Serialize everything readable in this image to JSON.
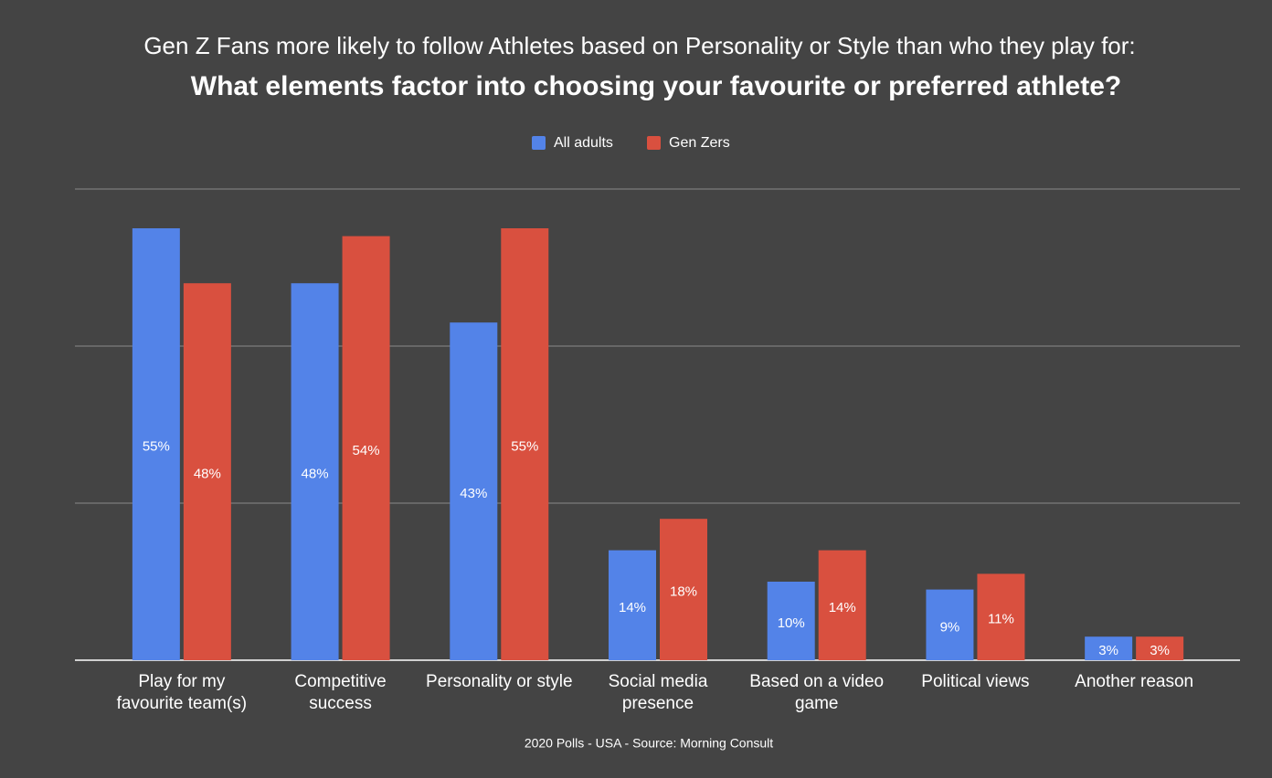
{
  "chart_data": {
    "type": "bar",
    "title": "Gen Z Fans more likely to follow Athletes based on Personality or Style than who they play for:",
    "subtitle": "What elements factor into choosing your favourite or preferred athlete?",
    "categories": [
      "Play for my favourite team(s)",
      "Competitive success",
      "Personality or style",
      "Social media presence",
      "Based on a video game",
      "Political views",
      "Another reason"
    ],
    "series": [
      {
        "name": "All adults",
        "color": "#5383e8",
        "values": [
          55,
          48,
          43,
          14,
          10,
          9,
          3
        ],
        "value_labels": [
          "55%",
          "48%",
          "43%",
          "14%",
          "10%",
          "9%",
          "3%"
        ]
      },
      {
        "name": "Gen Zers",
        "color": "#d9503f",
        "values": [
          48,
          54,
          55,
          18,
          14,
          11,
          3
        ],
        "value_labels": [
          "48%",
          "54%",
          "55%",
          "18%",
          "14%",
          "11%",
          "3%"
        ]
      }
    ],
    "ylim": [
      0,
      60
    ],
    "yticks": [
      0,
      20,
      40,
      60
    ],
    "grid": true,
    "footer": "2020 Polls - USA - Source: Morning Consult"
  }
}
